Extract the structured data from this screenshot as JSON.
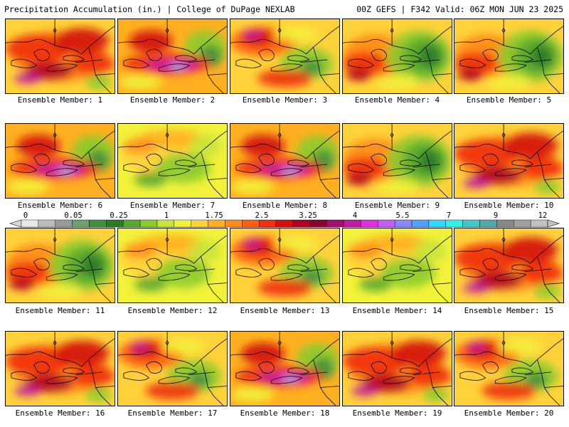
{
  "header": {
    "left": "Precipitation Accumulation (in.) | College of DuPage NEXLAB",
    "right": "00Z GEFS | F342 Valid: 06Z MON JUN 23 2025"
  },
  "legend": {
    "labels": [
      "0",
      "0.05",
      "0.25",
      "1",
      "1.75",
      "2.5",
      "3.25",
      "4",
      "5.5",
      "7",
      "9",
      "12"
    ],
    "colors": [
      "#e8e8e8",
      "#bdbdbd",
      "#9a9a9a",
      "#6f9e6f",
      "#3f8f3f",
      "#2a7a2a",
      "#5aa830",
      "#8ccc2e",
      "#c8e43a",
      "#f2f23a",
      "#ffd23a",
      "#ffb020",
      "#ff8a1a",
      "#ff6010",
      "#f03010",
      "#d41010",
      "#b00020",
      "#8a0030",
      "#a01070",
      "#c01aa0",
      "#e030e0",
      "#c060f0",
      "#8888ff",
      "#50a0ff",
      "#30d8ff",
      "#30f0e8",
      "#40c8c8",
      "#50a8a8",
      "#888888",
      "#a0a0a0",
      "#c0c0c0"
    ]
  },
  "panels": [
    {
      "caption": "Ensemble Member: 1",
      "scheme": "wet"
    },
    {
      "caption": "Ensemble Member: 2",
      "scheme": "band"
    },
    {
      "caption": "Ensemble Member: 3",
      "scheme": "mixed"
    },
    {
      "caption": "Ensemble Member: 4",
      "scheme": "greeneast"
    },
    {
      "caption": "Ensemble Member: 5",
      "scheme": "greeneast"
    },
    {
      "caption": "Ensemble Member: 6",
      "scheme": "band"
    },
    {
      "caption": "Ensemble Member: 7",
      "scheme": "dry"
    },
    {
      "caption": "Ensemble Member: 8",
      "scheme": "band"
    },
    {
      "caption": "Ensemble Member: 9",
      "scheme": "greeneast"
    },
    {
      "caption": "Ensemble Member: 10",
      "scheme": "wet"
    },
    {
      "caption": "Ensemble Member: 11",
      "scheme": "greeneast"
    },
    {
      "caption": "Ensemble Member: 12",
      "scheme": "dry"
    },
    {
      "caption": "Ensemble Member: 13",
      "scheme": "mixed"
    },
    {
      "caption": "Ensemble Member: 14",
      "scheme": "dry"
    },
    {
      "caption": "Ensemble Member: 15",
      "scheme": "wet"
    },
    {
      "caption": "Ensemble Member: 16",
      "scheme": "wet"
    },
    {
      "caption": "Ensemble Member: 17",
      "scheme": "mixed"
    },
    {
      "caption": "Ensemble Member: 18",
      "scheme": "band"
    },
    {
      "caption": "Ensemble Member: 19",
      "scheme": "wet"
    },
    {
      "caption": "Ensemble Member: 20",
      "scheme": "mixed"
    }
  ]
}
